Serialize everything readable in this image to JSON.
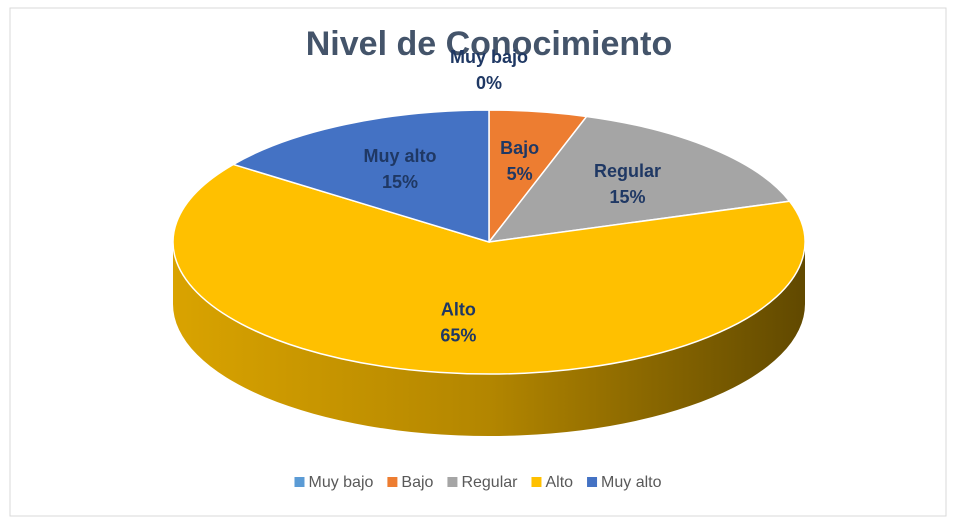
{
  "chart_data": {
    "type": "pie",
    "title": "Nivel de Conocimiento",
    "categories": [
      "Muy bajo",
      "Bajo",
      "Regular",
      "Alto",
      "Muy alto"
    ],
    "values": [
      0,
      5,
      15,
      65,
      15
    ],
    "value_labels": [
      "0%",
      "5%",
      "15%",
      "65%",
      "15%"
    ],
    "colors": [
      "#5b9bd5",
      "#ed7d31",
      "#a5a5a5",
      "#ffc000",
      "#4472c4"
    ],
    "legend": "bottom"
  }
}
